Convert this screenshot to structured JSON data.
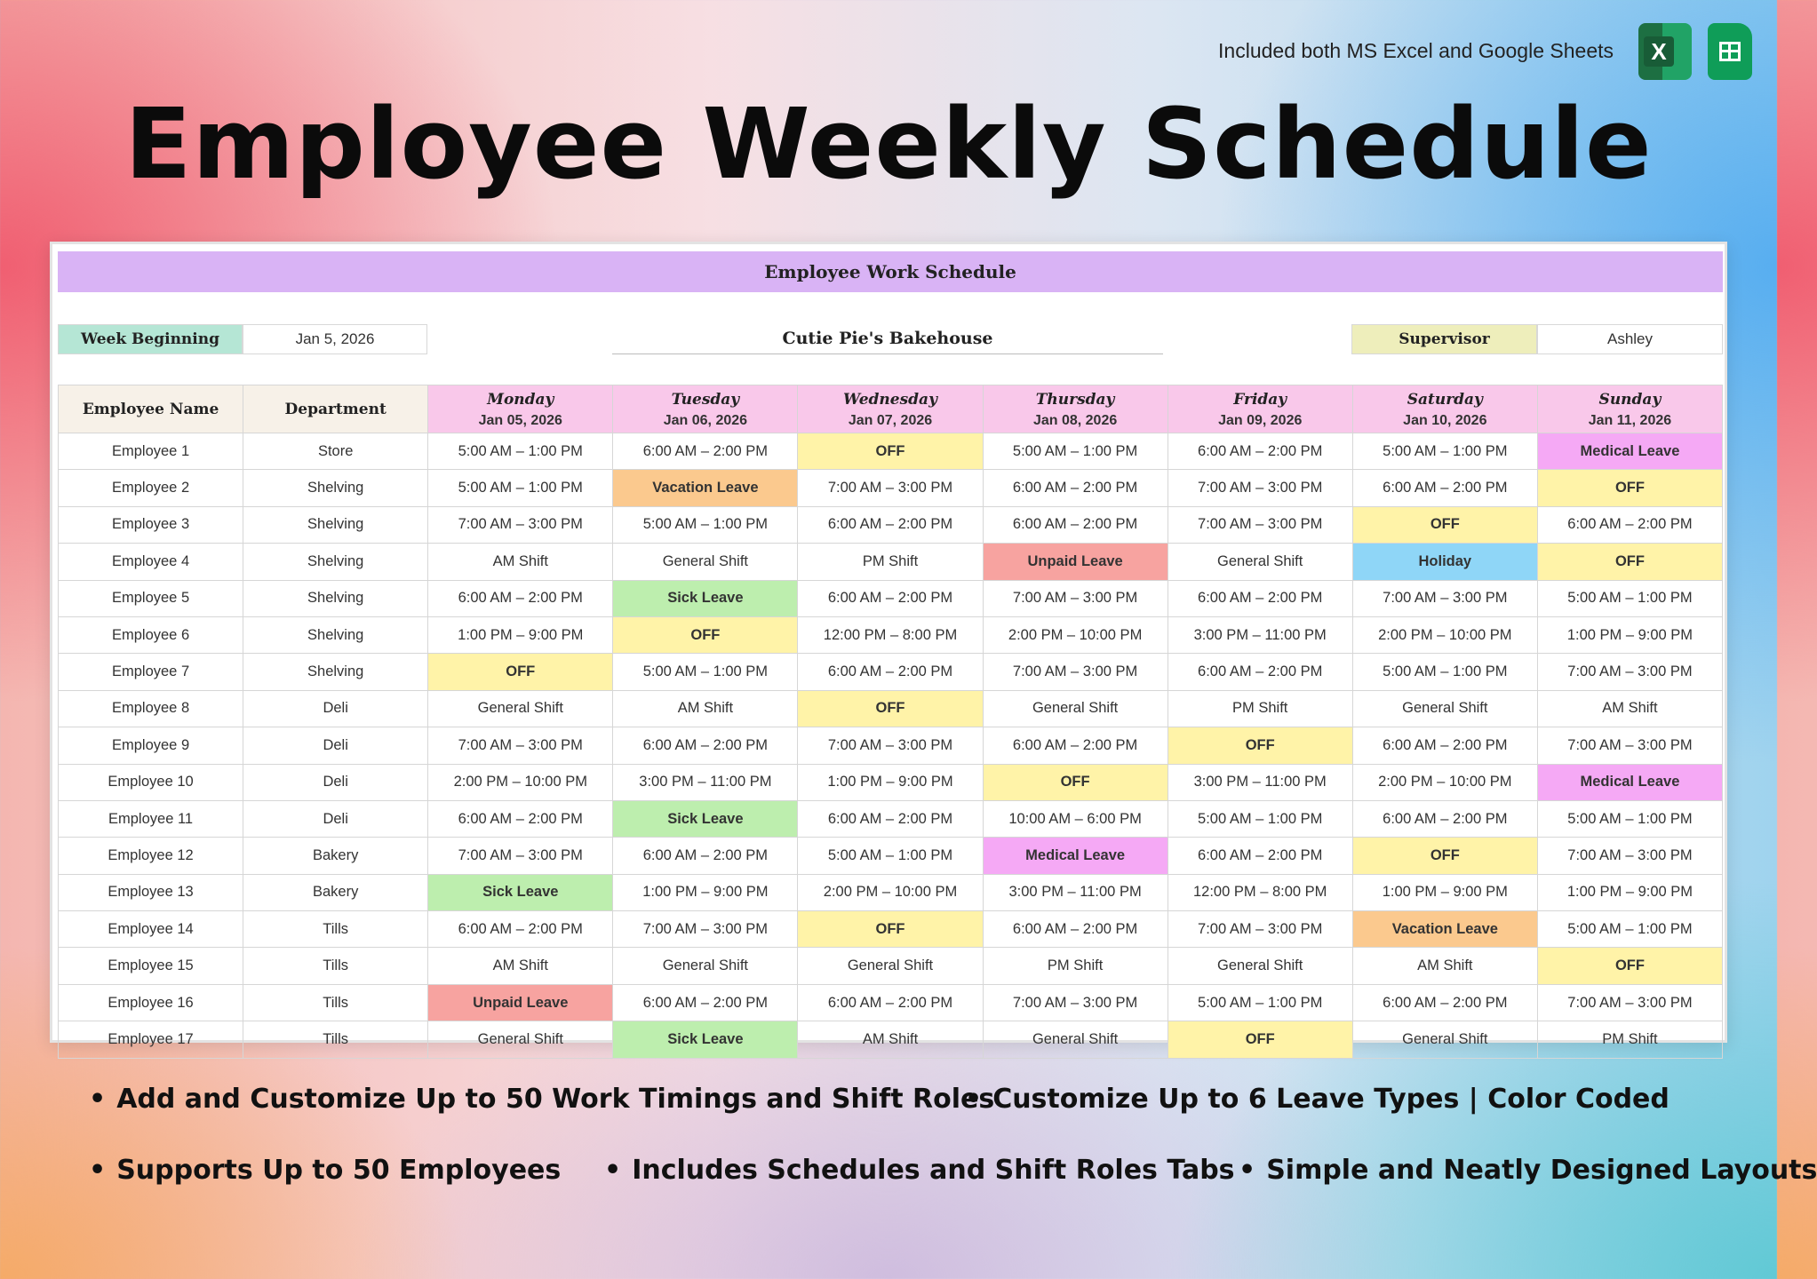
{
  "top_note": "Included both MS Excel and Google Sheets",
  "icons": {
    "excel": "excel-icon",
    "excel_letter": "X",
    "sheets": "google-sheets-icon"
  },
  "title": "Employee Weekly Schedule",
  "sheet": {
    "header": "Employee Work Schedule",
    "week_label": "Week Beginning",
    "week_value": "Jan 5, 2026",
    "company": "Cutie Pie's Bakehouse",
    "supervisor_label": "Supervisor",
    "supervisor_value": "Ashley",
    "col_employee": "Employee Name",
    "col_department": "Department",
    "days": [
      {
        "name": "Monday",
        "date": "Jan 05, 2026"
      },
      {
        "name": "Tuesday",
        "date": "Jan 06, 2026"
      },
      {
        "name": "Wednesday",
        "date": "Jan 07, 2026"
      },
      {
        "name": "Thursday",
        "date": "Jan 08, 2026"
      },
      {
        "name": "Friday",
        "date": "Jan 09, 2026"
      },
      {
        "name": "Saturday",
        "date": "Jan 10, 2026"
      },
      {
        "name": "Sunday",
        "date": "Jan 11, 2026"
      }
    ],
    "leave_colors": {
      "OFF": "#fff3a8",
      "Vacation Leave": "#fbc98e",
      "Sick Leave": "#bdeeae",
      "Medical Leave": "#f5a9f5",
      "Unpaid Leave": "#f7a3a0",
      "Holiday": "#8fd6f7"
    },
    "rows": [
      {
        "name": "Employee 1",
        "dept": "Store",
        "shifts": [
          "5:00 AM – 1:00 PM",
          "6:00 AM – 2:00 PM",
          "OFF",
          "5:00 AM – 1:00 PM",
          "6:00 AM – 2:00 PM",
          "5:00 AM – 1:00 PM",
          "Medical Leave"
        ]
      },
      {
        "name": "Employee 2",
        "dept": "Shelving",
        "shifts": [
          "5:00 AM – 1:00 PM",
          "Vacation Leave",
          "7:00 AM – 3:00 PM",
          "6:00 AM – 2:00 PM",
          "7:00 AM – 3:00 PM",
          "6:00 AM – 2:00 PM",
          "OFF"
        ]
      },
      {
        "name": "Employee 3",
        "dept": "Shelving",
        "shifts": [
          "7:00 AM – 3:00 PM",
          "5:00 AM – 1:00 PM",
          "6:00 AM – 2:00 PM",
          "6:00 AM – 2:00 PM",
          "7:00 AM – 3:00 PM",
          "OFF",
          "6:00 AM – 2:00 PM"
        ]
      },
      {
        "name": "Employee 4",
        "dept": "Shelving",
        "shifts": [
          "AM Shift",
          "General Shift",
          "PM Shift",
          "Unpaid Leave",
          "General Shift",
          "Holiday",
          "OFF"
        ]
      },
      {
        "name": "Employee 5",
        "dept": "Shelving",
        "shifts": [
          "6:00 AM – 2:00 PM",
          "Sick Leave",
          "6:00 AM – 2:00 PM",
          "7:00 AM – 3:00 PM",
          "6:00 AM – 2:00 PM",
          "7:00 AM – 3:00 PM",
          "5:00 AM – 1:00 PM"
        ]
      },
      {
        "name": "Employee 6",
        "dept": "Shelving",
        "shifts": [
          "1:00 PM – 9:00 PM",
          "OFF",
          "12:00 PM – 8:00 PM",
          "2:00 PM – 10:00 PM",
          "3:00 PM – 11:00 PM",
          "2:00 PM – 10:00 PM",
          "1:00 PM – 9:00 PM"
        ]
      },
      {
        "name": "Employee 7",
        "dept": "Shelving",
        "shifts": [
          "OFF",
          "5:00 AM – 1:00 PM",
          "6:00 AM – 2:00 PM",
          "7:00 AM – 3:00 PM",
          "6:00 AM – 2:00 PM",
          "5:00 AM – 1:00 PM",
          "7:00 AM – 3:00 PM"
        ]
      },
      {
        "name": "Employee 8",
        "dept": "Deli",
        "shifts": [
          "General Shift",
          "AM Shift",
          "OFF",
          "General Shift",
          "PM Shift",
          "General Shift",
          "AM Shift"
        ]
      },
      {
        "name": "Employee 9",
        "dept": "Deli",
        "shifts": [
          "7:00 AM – 3:00 PM",
          "6:00 AM – 2:00 PM",
          "7:00 AM – 3:00 PM",
          "6:00 AM – 2:00 PM",
          "OFF",
          "6:00 AM – 2:00 PM",
          "7:00 AM – 3:00 PM"
        ]
      },
      {
        "name": "Employee 10",
        "dept": "Deli",
        "shifts": [
          "2:00 PM – 10:00 PM",
          "3:00 PM – 11:00 PM",
          "1:00 PM – 9:00 PM",
          "OFF",
          "3:00 PM – 11:00 PM",
          "2:00 PM – 10:00 PM",
          "Medical Leave"
        ]
      },
      {
        "name": "Employee 11",
        "dept": "Deli",
        "shifts": [
          "6:00 AM – 2:00 PM",
          "Sick Leave",
          "6:00 AM – 2:00 PM",
          "10:00 AM – 6:00 PM",
          "5:00 AM – 1:00 PM",
          "6:00 AM – 2:00 PM",
          "5:00 AM – 1:00 PM"
        ]
      },
      {
        "name": "Employee 12",
        "dept": "Bakery",
        "shifts": [
          "7:00 AM – 3:00 PM",
          "6:00 AM – 2:00 PM",
          "5:00 AM – 1:00 PM",
          "Medical Leave",
          "6:00 AM – 2:00 PM",
          "OFF",
          "7:00 AM – 3:00 PM"
        ]
      },
      {
        "name": "Employee 13",
        "dept": "Bakery",
        "shifts": [
          "Sick Leave",
          "1:00 PM – 9:00 PM",
          "2:00 PM – 10:00 PM",
          "3:00 PM – 11:00 PM",
          "12:00 PM – 8:00 PM",
          "1:00 PM – 9:00 PM",
          "1:00 PM – 9:00 PM"
        ]
      },
      {
        "name": "Employee 14",
        "dept": "Tills",
        "shifts": [
          "6:00 AM – 2:00 PM",
          "7:00 AM – 3:00 PM",
          "OFF",
          "6:00 AM – 2:00 PM",
          "7:00 AM – 3:00 PM",
          "Vacation Leave",
          "5:00 AM – 1:00 PM"
        ]
      },
      {
        "name": "Employee 15",
        "dept": "Tills",
        "shifts": [
          "AM Shift",
          "General Shift",
          "General Shift",
          "PM Shift",
          "General Shift",
          "AM Shift",
          "OFF"
        ]
      },
      {
        "name": "Employee 16",
        "dept": "Tills",
        "shifts": [
          "Unpaid Leave",
          "6:00 AM – 2:00 PM",
          "6:00 AM – 2:00 PM",
          "7:00 AM – 3:00 PM",
          "5:00 AM – 1:00 PM",
          "6:00 AM – 2:00 PM",
          "7:00 AM – 3:00 PM"
        ]
      },
      {
        "name": "Employee 17",
        "dept": "Tills",
        "shifts": [
          "General Shift",
          "Sick Leave",
          "AM Shift",
          "General Shift",
          "OFF",
          "General Shift",
          "PM Shift"
        ]
      }
    ]
  },
  "features": [
    "Add and Customize Up to 50 Work Timings and Shift Roles",
    "Customize Up to 6 Leave Types | Color Coded",
    "Supports Up to 50 Employees",
    "Includes Schedules and Shift Roles Tabs",
    "Simple and Neatly Designed Layouts"
  ],
  "colors": {
    "header_purple": "#d9b3f5",
    "week_label_bg": "#b5e6d5",
    "supervisor_label_bg": "#eeeebb",
    "day_header_bg": "#f9c8ea",
    "left_header_bg": "#f7f1e8"
  }
}
